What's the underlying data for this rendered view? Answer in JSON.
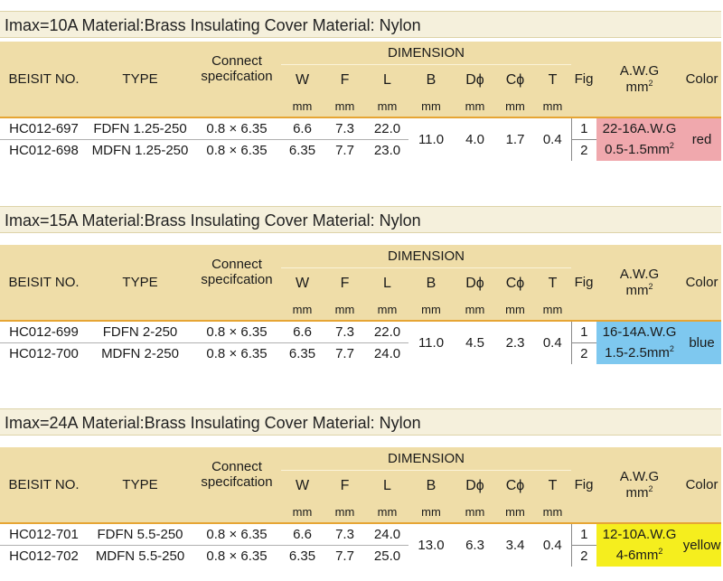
{
  "headers": {
    "beisit_no": "BEISIT NO.",
    "type": "TYPE",
    "connect_line1": "Connect",
    "connect_line2": "specifcation",
    "dimension": "DIMENSION",
    "w": "W",
    "f": "F",
    "l": "L",
    "b": "B",
    "d": "Dϕ",
    "c": "Cϕ",
    "t": "T",
    "unit": "mm",
    "fig": "Fig",
    "awg_line1": "A.W.G",
    "awg_line2": "mm",
    "awg_sup": "2",
    "color": "Color"
  },
  "sections": [
    {
      "title": "Imax=10A Material:Brass Insulating Cover Material: Nylon",
      "shared": {
        "b": "11.0",
        "d": "4.0",
        "c": "1.7",
        "t": "0.4"
      },
      "awg": "22-16A.W.G",
      "mm": "0.5-1.5mm",
      "mm_sup": "2",
      "color_label": "red",
      "color_bg": "#f0a8ad",
      "rows": [
        {
          "no": "HC012-697",
          "type": "FDFN 1.25-250",
          "connect": "0.8 × 6.35",
          "w": "6.6",
          "f": "7.3",
          "l": "22.0",
          "fig": "1"
        },
        {
          "no": "HC012-698",
          "type": "MDFN 1.25-250",
          "connect": "0.8 × 6.35",
          "w": "6.35",
          "f": "7.7",
          "l": "23.0",
          "fig": "2"
        }
      ]
    },
    {
      "title": "Imax=15A Material:Brass Insulating Cover Material: Nylon",
      "shared": {
        "b": "11.0",
        "d": "4.5",
        "c": "2.3",
        "t": "0.4"
      },
      "awg": "16-14A.W.G",
      "mm": "1.5-2.5mm",
      "mm_sup": "2",
      "color_label": "blue",
      "color_bg": "#7ec8ef",
      "rows": [
        {
          "no": "HC012-699",
          "type": "FDFN 2-250",
          "connect": "0.8 × 6.35",
          "w": "6.6",
          "f": "7.3",
          "l": "22.0",
          "fig": "1"
        },
        {
          "no": "HC012-700",
          "type": "MDFN 2-250",
          "connect": "0.8 × 6.35",
          "w": "6.35",
          "f": "7.7",
          "l": "24.0",
          "fig": "2"
        }
      ]
    },
    {
      "title": "Imax=24A Material:Brass Insulating Cover Material: Nylon",
      "shared": {
        "b": "13.0",
        "d": "6.3",
        "c": "3.4",
        "t": "0.4"
      },
      "awg": "12-10A.W.G",
      "mm": "4-6mm",
      "mm_sup": "2",
      "color_label": "yellow",
      "color_bg": "#f5ee1e",
      "rows": [
        {
          "no": "HC012-701",
          "type": "FDFN 5.5-250",
          "connect": "0.8 × 6.35",
          "w": "6.6",
          "f": "7.3",
          "l": "24.0",
          "fig": "1"
        },
        {
          "no": "HC012-702",
          "type": "MDFN 5.5-250",
          "connect": "0.8 × 6.35",
          "w": "6.35",
          "f": "7.7",
          "l": "25.0",
          "fig": "2"
        }
      ]
    }
  ]
}
